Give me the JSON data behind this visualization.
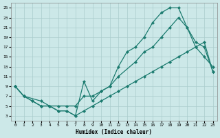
{
  "xlabel": "Humidex (Indice chaleur)",
  "bg_color": "#cce8e8",
  "grid_color": "#aacccc",
  "line_color": "#1a7a6e",
  "xlim": [
    -0.5,
    23.5
  ],
  "ylim": [
    2,
    26
  ],
  "yticks": [
    3,
    5,
    7,
    9,
    11,
    13,
    15,
    17,
    19,
    21,
    23,
    25
  ],
  "xticks": [
    0,
    1,
    2,
    3,
    4,
    5,
    6,
    7,
    8,
    9,
    10,
    11,
    12,
    13,
    14,
    15,
    16,
    17,
    18,
    19,
    20,
    21,
    22,
    23
  ],
  "line1_x": [
    0,
    1,
    2,
    3,
    4,
    5,
    6,
    7,
    8,
    9,
    10,
    11,
    12,
    13,
    14,
    15,
    16,
    17,
    18,
    19,
    20,
    21,
    22,
    23
  ],
  "line1_y": [
    9,
    7,
    6,
    5,
    5,
    4,
    4,
    3,
    10,
    6,
    8,
    9,
    13,
    16,
    17,
    19,
    22,
    24,
    25,
    25,
    21,
    17,
    15,
    13
  ],
  "line2_x": [
    0,
    1,
    3,
    4,
    5,
    6,
    7,
    8,
    9,
    10,
    11,
    12,
    14,
    15,
    16,
    17,
    18,
    19,
    20,
    21,
    22,
    23
  ],
  "line2_y": [
    9,
    7,
    6,
    5,
    5,
    5,
    5,
    7,
    7,
    8,
    9,
    11,
    14,
    16,
    17,
    19,
    21,
    23,
    21,
    18,
    17,
    12
  ],
  "line3_x": [
    0,
    1,
    2,
    3,
    4,
    5,
    6,
    7,
    8,
    9,
    10,
    11,
    12,
    13,
    14,
    15,
    16,
    17,
    18,
    19,
    20,
    21,
    22,
    23
  ],
  "line3_y": [
    9,
    7,
    6,
    5,
    5,
    4,
    4,
    3,
    4,
    5,
    6,
    7,
    8,
    9,
    10,
    11,
    12,
    13,
    14,
    15,
    16,
    17,
    18,
    12
  ]
}
